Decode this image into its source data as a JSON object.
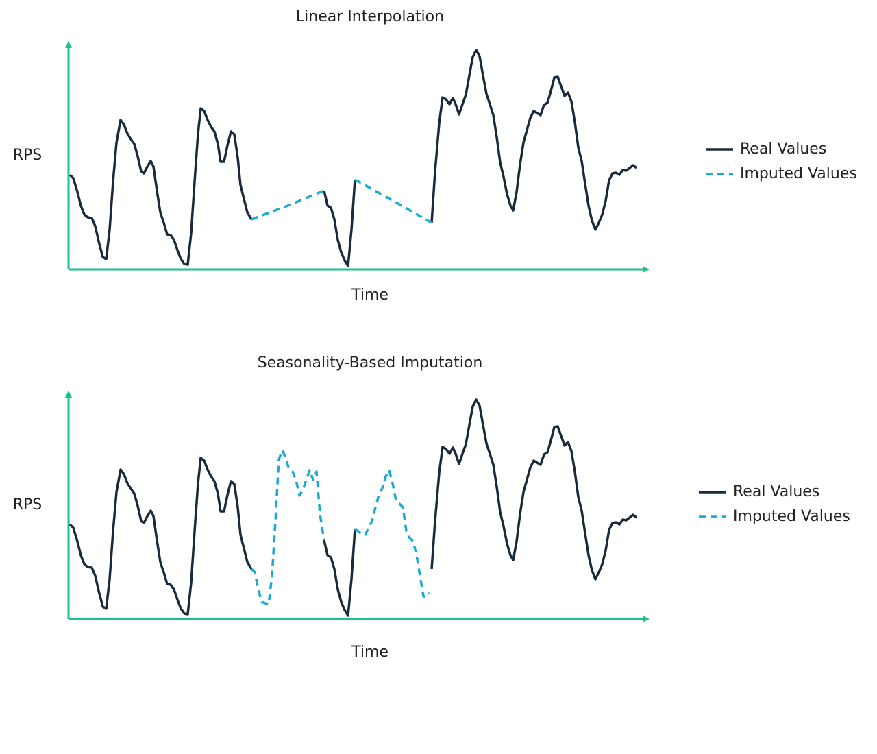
{
  "chart_data": [
    {
      "type": "line",
      "title": "Linear Interpolation",
      "x_label": "Time",
      "y_label": "RPS",
      "xlim": [
        0,
        848
      ],
      "ylim": [
        0,
        333
      ],
      "axis_color": "#1ec08b",
      "x": [
        2,
        7,
        13,
        18,
        23,
        28,
        34,
        39,
        44,
        50,
        55,
        60,
        65,
        70,
        76,
        81,
        86,
        91,
        96,
        101,
        106,
        110,
        115,
        120,
        124,
        129,
        134,
        139,
        144,
        149,
        154,
        159,
        164,
        169,
        174,
        179,
        184,
        189,
        193,
        198,
        203,
        208,
        213,
        218,
        222,
        227,
        232,
        237,
        242,
        247,
        251,
        256,
        261,
        267,
        320,
        373,
        378,
        383,
        388,
        393,
        398,
        403,
        408,
        413,
        418,
        474,
        530,
        535,
        541,
        546,
        551,
        556,
        561,
        565,
        570,
        575,
        580,
        585,
        590,
        595,
        600,
        605,
        610,
        615,
        620,
        625,
        630,
        635,
        640,
        645,
        649,
        654,
        659,
        664,
        669,
        674,
        679,
        684,
        689,
        694,
        699,
        704,
        709,
        714,
        719,
        724,
        729,
        734,
        739,
        744,
        749,
        754,
        759,
        764,
        769,
        774,
        779,
        784,
        789,
        794,
        799,
        804,
        809,
        814,
        819,
        824,
        829
      ],
      "series": [
        {
          "name": "Real Values",
          "color": "#1b2a3a",
          "style": "solid",
          "values": [
            138,
            133,
            113,
            93,
            80,
            76,
            75,
            63,
            41,
            18,
            15,
            58,
            128,
            185,
            218,
            211,
            198,
            190,
            183,
            165,
            143,
            140,
            150,
            158,
            150,
            115,
            83,
            68,
            51,
            50,
            43,
            28,
            15,
            8,
            7,
            53,
            128,
            198,
            235,
            231,
            218,
            208,
            201,
            183,
            157,
            157,
            181,
            201,
            197,
            163,
            123,
            103,
            83,
            73,
            null,
            115,
            93,
            90,
            73,
            43,
            25,
            13,
            5,
            58,
            131,
            null,
            68,
            143,
            213,
            251,
            248,
            241,
            250,
            241,
            226,
            241,
            255,
            283,
            310,
            320,
            311,
            283,
            256,
            241,
            225,
            193,
            156,
            135,
            110,
            93,
            86,
            113,
            153,
            185,
            203,
            221,
            231,
            228,
            225,
            240,
            243,
            260,
            280,
            281,
            267,
            253,
            258,
            245,
            215,
            178,
            158,
            125,
            93,
            71,
            58,
            68,
            80,
            100,
            130,
            140,
            141,
            138,
            145,
            144,
            148,
            152,
            148
          ]
        },
        {
          "name": "Imputed Values",
          "color": "#1aabd1",
          "style": "dashed",
          "values": [
            null,
            null,
            null,
            null,
            null,
            null,
            null,
            null,
            null,
            null,
            null,
            null,
            null,
            null,
            null,
            null,
            null,
            null,
            null,
            null,
            null,
            null,
            null,
            null,
            null,
            null,
            null,
            null,
            null,
            null,
            null,
            null,
            null,
            null,
            null,
            null,
            null,
            null,
            null,
            null,
            null,
            null,
            null,
            null,
            null,
            null,
            null,
            null,
            null,
            null,
            null,
            null,
            null,
            73,
            93,
            115,
            null,
            null,
            null,
            null,
            null,
            null,
            null,
            null,
            131,
            100,
            68,
            null,
            null,
            null,
            null,
            null,
            null,
            null,
            null,
            null,
            null,
            null,
            null,
            null,
            null,
            null,
            null,
            null,
            null,
            null,
            null,
            null,
            null,
            null,
            null,
            null,
            null,
            null,
            null,
            null,
            null,
            null,
            null,
            null,
            null,
            null,
            null,
            null,
            null,
            null,
            null,
            null,
            null,
            null,
            null,
            null,
            null,
            null,
            null,
            null,
            null,
            null,
            null,
            null,
            null,
            null,
            null,
            null,
            null,
            null,
            null
          ]
        }
      ]
    },
    {
      "type": "line",
      "title": "Seasonality-Based Imputation",
      "x_label": "Time",
      "y_label": "RPS",
      "xlim": [
        0,
        848
      ],
      "ylim": [
        0,
        333
      ],
      "axis_color": "#1ec08b",
      "x": [
        2,
        7,
        13,
        18,
        23,
        28,
        34,
        39,
        44,
        50,
        55,
        60,
        65,
        70,
        76,
        81,
        86,
        91,
        96,
        101,
        106,
        110,
        115,
        120,
        124,
        129,
        134,
        139,
        144,
        149,
        154,
        159,
        164,
        169,
        174,
        179,
        184,
        189,
        193,
        198,
        203,
        208,
        213,
        218,
        222,
        227,
        232,
        237,
        242,
        247,
        251,
        256,
        261,
        267,
        272,
        277,
        282,
        292,
        297,
        302,
        307,
        312,
        317,
        322,
        327,
        332,
        337,
        342,
        347,
        352,
        357,
        362,
        367,
        373,
        378,
        383,
        388,
        393,
        398,
        403,
        408,
        413,
        418,
        423,
        428,
        433,
        438,
        443,
        448,
        453,
        458,
        463,
        468,
        473,
        478,
        483,
        488,
        493,
        498,
        503,
        508,
        513,
        518,
        523,
        527,
        530,
        535,
        541,
        546,
        551,
        556,
        561,
        565,
        570,
        575,
        580,
        585,
        590,
        595,
        600,
        605,
        610,
        615,
        620,
        625,
        630,
        635,
        640,
        645,
        649,
        654,
        659,
        664,
        669,
        674,
        679,
        684,
        689,
        694,
        699,
        704,
        709,
        714,
        719,
        724,
        729,
        734,
        739,
        744,
        749,
        754,
        759,
        764,
        769,
        774,
        779,
        784,
        789,
        794,
        799,
        804,
        809,
        814,
        819,
        824,
        829
      ],
      "series": [
        {
          "name": "Real Values",
          "color": "#1b2a3a",
          "style": "solid",
          "values": [
            138,
            133,
            113,
            93,
            80,
            76,
            75,
            63,
            41,
            18,
            15,
            58,
            128,
            185,
            218,
            211,
            198,
            190,
            183,
            165,
            143,
            140,
            150,
            158,
            150,
            115,
            83,
            68,
            51,
            50,
            43,
            28,
            15,
            8,
            7,
            53,
            128,
            198,
            235,
            231,
            218,
            208,
            201,
            183,
            157,
            157,
            181,
            201,
            197,
            163,
            123,
            103,
            83,
            73,
            null,
            null,
            null,
            null,
            null,
            null,
            null,
            null,
            null,
            null,
            null,
            null,
            null,
            null,
            null,
            null,
            null,
            null,
            null,
            115,
            93,
            90,
            73,
            43,
            25,
            13,
            5,
            58,
            131,
            null,
            null,
            null,
            null,
            null,
            null,
            null,
            null,
            null,
            null,
            null,
            null,
            null,
            null,
            null,
            null,
            null,
            null,
            null,
            null,
            null,
            null,
            73,
            143,
            213,
            251,
            248,
            241,
            250,
            241,
            226,
            241,
            255,
            283,
            310,
            320,
            311,
            283,
            256,
            241,
            225,
            193,
            156,
            135,
            110,
            93,
            86,
            113,
            153,
            185,
            203,
            221,
            231,
            228,
            225,
            240,
            243,
            260,
            280,
            281,
            267,
            253,
            258,
            245,
            215,
            178,
            158,
            125,
            93,
            71,
            58,
            68,
            80,
            100,
            130,
            140,
            141,
            138,
            145,
            144,
            148,
            152,
            148
          ]
        },
        {
          "name": "Imputed Values",
          "color": "#1aabd1",
          "style": "dashed",
          "values": [
            null,
            null,
            null,
            null,
            null,
            null,
            null,
            null,
            null,
            null,
            null,
            null,
            null,
            null,
            null,
            null,
            null,
            null,
            null,
            null,
            null,
            null,
            null,
            null,
            null,
            null,
            null,
            null,
            null,
            null,
            null,
            null,
            null,
            null,
            null,
            null,
            null,
            null,
            null,
            null,
            null,
            null,
            null,
            null,
            null,
            null,
            null,
            null,
            null,
            null,
            null,
            null,
            null,
            73,
            68,
            43,
            25,
            21,
            63,
            143,
            233,
            246,
            235,
            218,
            215,
            203,
            180,
            188,
            203,
            217,
            203,
            215,
            153,
            115,
            null,
            null,
            null,
            null,
            null,
            null,
            null,
            null,
            131,
            128,
            123,
            123,
            133,
            143,
            163,
            181,
            191,
            208,
            217,
            198,
            173,
            168,
            163,
            128,
            118,
            113,
            93,
            63,
            33,
            33,
            38,
            null,
            null,
            null,
            null,
            null,
            null,
            null,
            null,
            null,
            null,
            null,
            null,
            null,
            null,
            null,
            null,
            null,
            null,
            null,
            null,
            null,
            null,
            null,
            null,
            null,
            null,
            null,
            null,
            null,
            null,
            null,
            null,
            null,
            null,
            null,
            null,
            null,
            null,
            null,
            null,
            null,
            null,
            null,
            null,
            null,
            null,
            null,
            null,
            null,
            null,
            null,
            null,
            null,
            null,
            null,
            null,
            null,
            null,
            null,
            null,
            null
          ]
        }
      ]
    }
  ]
}
